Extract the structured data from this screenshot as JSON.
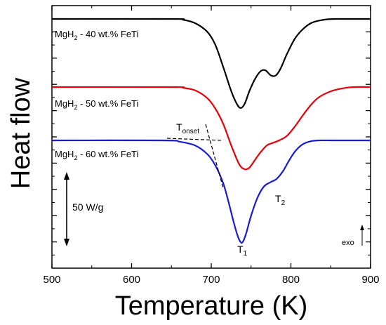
{
  "chart_data": {
    "type": "line",
    "xlabel": "Temperature (K)",
    "ylabel": "Heat flow",
    "xlim": [
      500,
      900
    ],
    "x_ticks": [
      "500",
      "600",
      "700",
      "800",
      "900"
    ],
    "y_ticks_labeled": false,
    "legend": "none",
    "series": [
      {
        "name": "MgH2 - 40 wt.% FeTi",
        "label_main": "MgH",
        "label_sub": "2",
        "label_rest": " - 40 wt.% FeTi",
        "color": "#000000",
        "x": [
          500,
          650,
          665,
          680,
          695,
          705,
          715,
          725,
          732,
          737,
          742,
          748,
          755,
          762,
          768,
          775,
          781,
          787,
          795,
          805,
          815,
          825,
          835,
          845,
          855,
          870,
          900
        ],
        "y": [
          0,
          0,
          -0.1,
          -0.5,
          -1.5,
          -3.0,
          -5.6,
          -8.4,
          -9.9,
          -10.4,
          -9.9,
          -8.4,
          -7.0,
          -6.1,
          -6.0,
          -6.6,
          -6.6,
          -5.8,
          -4.1,
          -2.3,
          -1.2,
          -0.5,
          -0.2,
          -0.05,
          0,
          0,
          0
        ]
      },
      {
        "name": "MgH2 - 50 wt.% FeTi",
        "label_main": "MgH",
        "label_sub": "2",
        "label_rest": " - 50 wt.% FeTi",
        "color": "#e8000b",
        "x": [
          500,
          650,
          665,
          680,
          695,
          705,
          715,
          725,
          735,
          742,
          748,
          755,
          762,
          770,
          778,
          786,
          795,
          805,
          815,
          825,
          835,
          850,
          865,
          880,
          900
        ],
        "y": [
          0,
          0,
          -0.1,
          -0.4,
          -1.3,
          -2.5,
          -4.3,
          -6.8,
          -9.0,
          -9.6,
          -9.4,
          -8.5,
          -7.6,
          -6.8,
          -6.5,
          -6.2,
          -5.7,
          -4.6,
          -3.3,
          -2.1,
          -1.2,
          -0.5,
          -0.15,
          0,
          0
        ]
      },
      {
        "name": "MgH2 - 60 wt.% FeTi",
        "label_main": "MgH",
        "label_sub": "2",
        "label_rest": " - 60 wt.% FeTi",
        "color": "#1a1adb",
        "x": [
          500,
          640,
          660,
          680,
          695,
          705,
          715,
          722,
          728,
          733,
          737,
          740,
          744,
          750,
          758,
          766,
          774,
          782,
          790,
          798,
          806,
          815,
          825,
          835,
          850,
          870,
          900
        ],
        "y": [
          0,
          0,
          -0.15,
          -0.6,
          -1.6,
          -2.9,
          -5.0,
          -7.3,
          -9.5,
          -11.1,
          -11.9,
          -11.8,
          -10.8,
          -8.8,
          -6.7,
          -5.4,
          -4.9,
          -4.5,
          -3.6,
          -2.3,
          -1.2,
          -0.45,
          -0.1,
          0,
          0,
          0,
          0
        ]
      }
    ],
    "annotations": {
      "t_onset_main": "T",
      "t_onset_sub": "onset",
      "t1_main": "T",
      "t1_sub": "1",
      "t2_main": "T",
      "t2_sub": "2",
      "scale_bar": "50 W/g",
      "exo": "exo"
    }
  }
}
